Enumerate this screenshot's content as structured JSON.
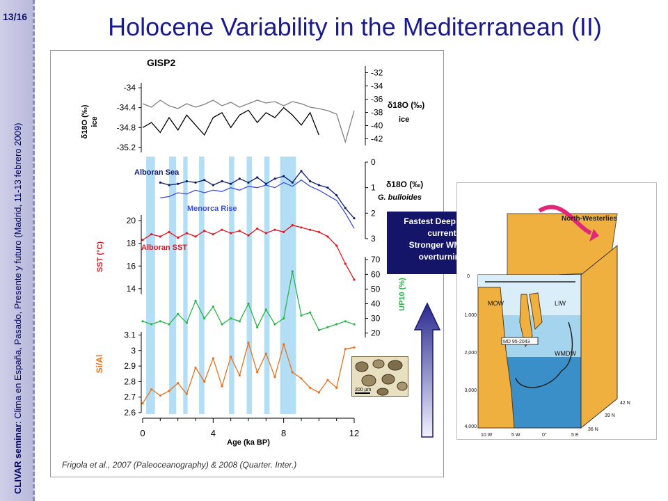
{
  "slide": {
    "page_number": "13/16",
    "title": "Holocene Variability in the Mediterranean (II)",
    "side_bold": "CLIVAR seminar",
    "side_rest": ": Clima en España, Pasado, Presente y futuro (Madrid, 11-13 febrero 2009)"
  },
  "citation": "Frigola et al., 2007 (Paleoceanography)  & 2008 (Quarter. Inter.)",
  "callout": {
    "lines": [
      "Fastest  Deep water",
      "current",
      "Stronger WMDW",
      "overturning"
    ]
  },
  "colors": {
    "title": "#1a1a8c",
    "gisp_upper": "#808080",
    "gisp_lower": "#000000",
    "alboran_sea": "#0d1a6b",
    "menorca_rise": "#3b4fd8",
    "sst": "#e0141e",
    "up10": "#2ab44a",
    "si_al": "#e8721e",
    "band": "#a6d8f5",
    "callout_bg": "#141469"
  },
  "chart_data": [
    {
      "type": "line",
      "panel": "gisp2",
      "title": "GISP2",
      "left_axis": {
        "label_main": "δ18O (‰)",
        "label_sub": "ice",
        "ticks": [
          "-34",
          "-34.4",
          "-34.8",
          "-35.2"
        ],
        "range": [
          -35.3,
          -33.9
        ]
      },
      "right_axis": {
        "label_main": "δ18O (‰)",
        "label_sub": "ice",
        "ticks": [
          "-32",
          "-34",
          "-36",
          "-38",
          "-40",
          "-42"
        ],
        "range": [
          -43,
          -31
        ]
      },
      "series": [
        {
          "x": [
            0,
            0.5,
            1,
            1.5,
            2,
            2.5,
            3,
            3.5,
            4,
            4.5,
            5,
            5.5,
            6,
            6.5,
            7,
            7.5,
            8,
            8.5,
            9,
            9.5,
            10,
            10.5,
            11,
            11.5,
            12
          ],
          "y": [
            -34.05,
            -34.1,
            -34.0,
            -34.08,
            -34.12,
            -34.05,
            -34.1,
            -34.06,
            -34.0,
            -34.08,
            -34.03,
            -34.1,
            -34.05,
            -34.0,
            -34.04,
            -34.02,
            -34.08,
            -34.02,
            -34.05,
            -34.1,
            -34.12,
            -34.15,
            -34.2,
            -34.6,
            -34.15
          ]
        },
        {
          "x": [
            0,
            0.5,
            1,
            1.5,
            2,
            2.5,
            3,
            3.5,
            4,
            4.5,
            5,
            5.5,
            6,
            6.5,
            7,
            7.5,
            8,
            8.5,
            9,
            9.5,
            10
          ],
          "y": [
            -34.8,
            -34.7,
            -34.9,
            -34.6,
            -34.85,
            -34.55,
            -34.75,
            -34.95,
            -34.6,
            -34.5,
            -34.8,
            -34.55,
            -34.45,
            -34.7,
            -34.5,
            -34.6,
            -34.4,
            -34.55,
            -34.75,
            -34.5,
            -34.95
          ]
        }
      ]
    },
    {
      "type": "line",
      "panel": "bulloides",
      "right_axis": {
        "label_main": "δ18O (‰)",
        "label_sub": "G. bulloides",
        "ticks": [
          "0",
          "1",
          "2",
          "3"
        ],
        "range": [
          0,
          3
        ],
        "inverted": true
      },
      "series": [
        {
          "name": "Alboran Sea",
          "x": [
            1,
            1.5,
            2,
            2.5,
            3,
            3.5,
            4,
            4.5,
            5,
            5.5,
            6,
            6.5,
            7,
            7.5,
            8,
            8.5,
            9,
            9.5,
            10,
            10.5,
            11,
            11.5,
            12
          ],
          "y": [
            0.8,
            0.9,
            0.85,
            0.75,
            0.8,
            0.7,
            0.9,
            0.75,
            0.85,
            0.65,
            0.8,
            0.6,
            0.85,
            0.65,
            0.55,
            0.8,
            0.35,
            0.75,
            0.9,
            1.0,
            1.3,
            1.8,
            2.2
          ]
        },
        {
          "name": "Menorca Rise",
          "x": [
            1,
            1.5,
            2,
            2.5,
            3,
            3.5,
            4,
            4.5,
            5,
            5.5,
            6,
            6.5,
            7,
            7.5,
            8,
            8.5,
            9,
            9.5,
            10,
            10.5,
            11,
            11.5,
            12
          ],
          "y": [
            1.4,
            1.35,
            1.2,
            1.25,
            1.1,
            1.2,
            1.1,
            1.15,
            1.0,
            1.1,
            0.95,
            1.0,
            0.9,
            1.0,
            0.8,
            0.95,
            0.7,
            0.95,
            1.1,
            1.3,
            1.5,
            2.0,
            2.6
          ]
        }
      ]
    },
    {
      "type": "line",
      "panel": "sst",
      "left_axis": {
        "label_main": "SST (°C)",
        "ticks": [
          "20",
          "18",
          "16",
          "14"
        ],
        "range": [
          13.5,
          20.5
        ]
      },
      "series": [
        {
          "name": "Alboran SST",
          "x": [
            0,
            0.5,
            1,
            1.5,
            2,
            2.5,
            3,
            3.5,
            4,
            4.5,
            5,
            5.5,
            6,
            6.5,
            7,
            7.5,
            8,
            8.5,
            9,
            9.5,
            10,
            10.5,
            11,
            11.5,
            12
          ],
          "y": [
            18.3,
            18.8,
            18.6,
            19.0,
            18.5,
            18.9,
            18.6,
            19.1,
            18.8,
            19.2,
            18.9,
            19.1,
            18.7,
            19.3,
            18.9,
            19.2,
            19.0,
            19.6,
            19.4,
            19.2,
            19.0,
            18.6,
            17.8,
            16.2,
            14.8
          ]
        }
      ]
    },
    {
      "type": "line",
      "panel": "up10",
      "right_axis": {
        "label_main": "UP10 (%)",
        "ticks": [
          "70",
          "60",
          "50",
          "40",
          "30",
          "20"
        ],
        "range": [
          17,
          72
        ]
      },
      "series": [
        {
          "x": [
            0,
            0.5,
            1,
            1.5,
            2,
            2.5,
            3,
            3.5,
            4,
            4.5,
            5,
            5.5,
            6,
            6.5,
            7,
            7.5,
            8,
            8.5,
            9,
            9.5,
            10,
            10.5,
            11,
            11.5,
            12
          ],
          "y": [
            28,
            26,
            28,
            26,
            33,
            27,
            42,
            30,
            38,
            26,
            30,
            28,
            40,
            24,
            36,
            26,
            30,
            62,
            32,
            34,
            22,
            24,
            26,
            28,
            26
          ]
        }
      ]
    },
    {
      "type": "line",
      "panel": "si_al",
      "x_axis": {
        "label": "Age (ka BP)",
        "ticks": [
          "0",
          "4",
          "8",
          "12"
        ],
        "range": [
          0,
          12
        ]
      },
      "left_axis": {
        "label_main": "Si/Al",
        "ticks": [
          "3.1",
          "3",
          "2.9",
          "2.8",
          "2.7",
          "2.6"
        ],
        "range": [
          2.6,
          3.12
        ]
      },
      "series": [
        {
          "x": [
            0,
            0.5,
            1,
            1.5,
            2,
            2.5,
            3,
            3.5,
            4,
            4.5,
            5,
            5.5,
            6,
            6.5,
            7,
            7.5,
            8,
            8.5,
            9,
            9.5,
            10,
            10.5,
            11,
            11.5,
            12
          ],
          "y": [
            2.66,
            2.75,
            2.71,
            2.74,
            2.79,
            2.72,
            2.89,
            2.8,
            2.95,
            2.77,
            2.96,
            2.84,
            3.05,
            2.86,
            2.98,
            2.83,
            3.04,
            2.86,
            2.82,
            2.76,
            2.73,
            2.81,
            2.76,
            3.01,
            3.02
          ]
        }
      ]
    }
  ],
  "highlight_bands_ka": [
    [
      0.2,
      0.7
    ],
    [
      1.5,
      1.9
    ],
    [
      2.3,
      2.55
    ],
    [
      3.2,
      3.5
    ],
    [
      4.9,
      5.2
    ],
    [
      5.9,
      6.2
    ],
    [
      6.9,
      7.2
    ],
    [
      7.8,
      8.7
    ]
  ],
  "panel_labels": {
    "alboran_sea": "Alboran Sea",
    "menorca_rise": "Menorca Rise",
    "alboran_sst": "Alboran SST",
    "scale_bar": "200 µm"
  },
  "diagram": {
    "north_westerlies": "North-Westerlies",
    "water_masses": [
      "MOW",
      "LIW",
      "WMDW"
    ],
    "core": "MD 95-2043",
    "depths": [
      "0",
      "1,000",
      "2,000",
      "3,000",
      "4,000"
    ],
    "longitudes": [
      "10 W",
      "5 W",
      "0°",
      "5 E"
    ],
    "latitudes": [
      "42 N",
      "39 N",
      "36 N"
    ]
  }
}
